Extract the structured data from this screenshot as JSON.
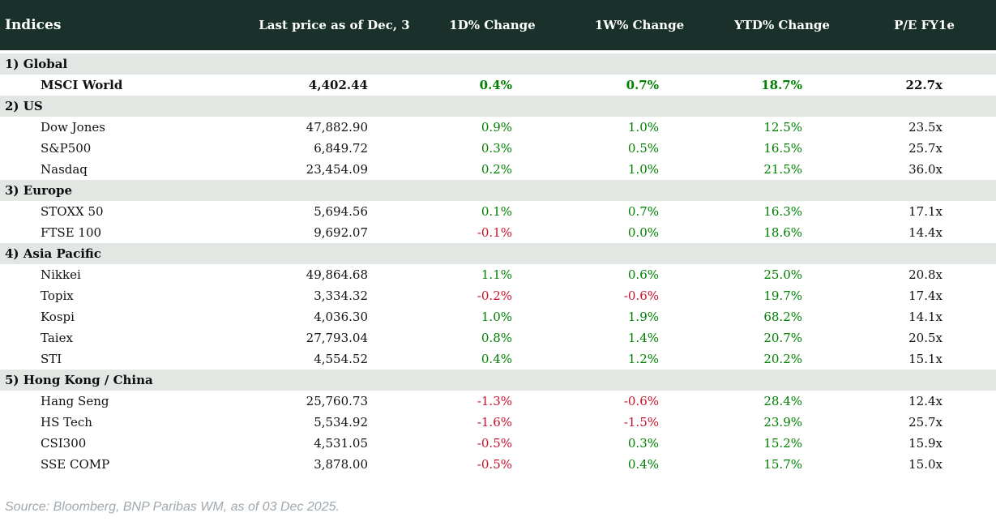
{
  "chart_data": {
    "type": "table",
    "title": "Indices",
    "columns": [
      "Indices",
      "Last price as of Dec, 3",
      "1D% Change",
      "1W% Change",
      "YTD% Change",
      "P/E FY1e"
    ],
    "sections": [
      {
        "label": "1) Global",
        "rows": [
          {
            "name": "MSCI World",
            "last_price": "4,402.44",
            "change_1d": "0.4%",
            "change_1w": "0.7%",
            "change_ytd": "18.7%",
            "pe_fy1e": "22.7x",
            "emphasis": true
          }
        ]
      },
      {
        "label": "2) US",
        "rows": [
          {
            "name": "Dow Jones",
            "last_price": "47,882.90",
            "change_1d": "0.9%",
            "change_1w": "1.0%",
            "change_ytd": "12.5%",
            "pe_fy1e": "23.5x"
          },
          {
            "name": "S&P500",
            "last_price": "6,849.72",
            "change_1d": "0.3%",
            "change_1w": "0.5%",
            "change_ytd": "16.5%",
            "pe_fy1e": "25.7x"
          },
          {
            "name": "Nasdaq",
            "last_price": "23,454.09",
            "change_1d": "0.2%",
            "change_1w": "1.0%",
            "change_ytd": "21.5%",
            "pe_fy1e": "36.0x"
          }
        ]
      },
      {
        "label": "3) Europe",
        "rows": [
          {
            "name": "STOXX 50",
            "last_price": "5,694.56",
            "change_1d": "0.1%",
            "change_1w": "0.7%",
            "change_ytd": "16.3%",
            "pe_fy1e": "17.1x"
          },
          {
            "name": "FTSE 100",
            "last_price": "9,692.07",
            "change_1d": "-0.1%",
            "change_1w": "0.0%",
            "change_ytd": "18.6%",
            "pe_fy1e": "14.4x"
          }
        ]
      },
      {
        "label": "4) Asia Pacific",
        "rows": [
          {
            "name": "Nikkei",
            "last_price": "49,864.68",
            "change_1d": "1.1%",
            "change_1w": "0.6%",
            "change_ytd": "25.0%",
            "pe_fy1e": "20.8x"
          },
          {
            "name": "Topix",
            "last_price": "3,334.32",
            "change_1d": "-0.2%",
            "change_1w": "-0.6%",
            "change_ytd": "19.7%",
            "pe_fy1e": "17.4x"
          },
          {
            "name": "Kospi",
            "last_price": "4,036.30",
            "change_1d": "1.0%",
            "change_1w": "1.9%",
            "change_ytd": "68.2%",
            "pe_fy1e": "14.1x"
          },
          {
            "name": "Taiex",
            "last_price": "27,793.04",
            "change_1d": "0.8%",
            "change_1w": "1.4%",
            "change_ytd": "20.7%",
            "pe_fy1e": "20.5x"
          },
          {
            "name": "STI",
            "last_price": "4,554.52",
            "change_1d": "0.4%",
            "change_1w": "1.2%",
            "change_ytd": "20.2%",
            "pe_fy1e": "15.1x"
          }
        ]
      },
      {
        "label": "5) Hong Kong / China",
        "rows": [
          {
            "name": "Hang Seng",
            "last_price": "25,760.73",
            "change_1d": "-1.3%",
            "change_1w": "-0.6%",
            "change_ytd": "28.4%",
            "pe_fy1e": "12.4x"
          },
          {
            "name": "HS Tech",
            "last_price": "5,534.92",
            "change_1d": "-1.6%",
            "change_1w": "-1.5%",
            "change_ytd": "23.9%",
            "pe_fy1e": "25.7x"
          },
          {
            "name": "CSI300",
            "last_price": "4,531.05",
            "change_1d": "-0.5%",
            "change_1w": "0.3%",
            "change_ytd": "15.2%",
            "pe_fy1e": "15.9x"
          },
          {
            "name": "SSE COMP",
            "last_price": "3,878.00",
            "change_1d": "-0.5%",
            "change_1w": "0.4%",
            "change_ytd": "15.7%",
            "pe_fy1e": "15.0x"
          }
        ]
      }
    ]
  },
  "footer": {
    "source": "Source: Bloomberg, BNP Paribas WM, as of 03 Dec 2025."
  },
  "colors": {
    "header_bg": "#1a312b",
    "header_text": "#ffffff",
    "section_row_bg": "#e2e7e4",
    "positive_change": "#008000",
    "negative_change": "#c9102c",
    "body_text": "#111111",
    "source_text": "#9fa8ae"
  }
}
